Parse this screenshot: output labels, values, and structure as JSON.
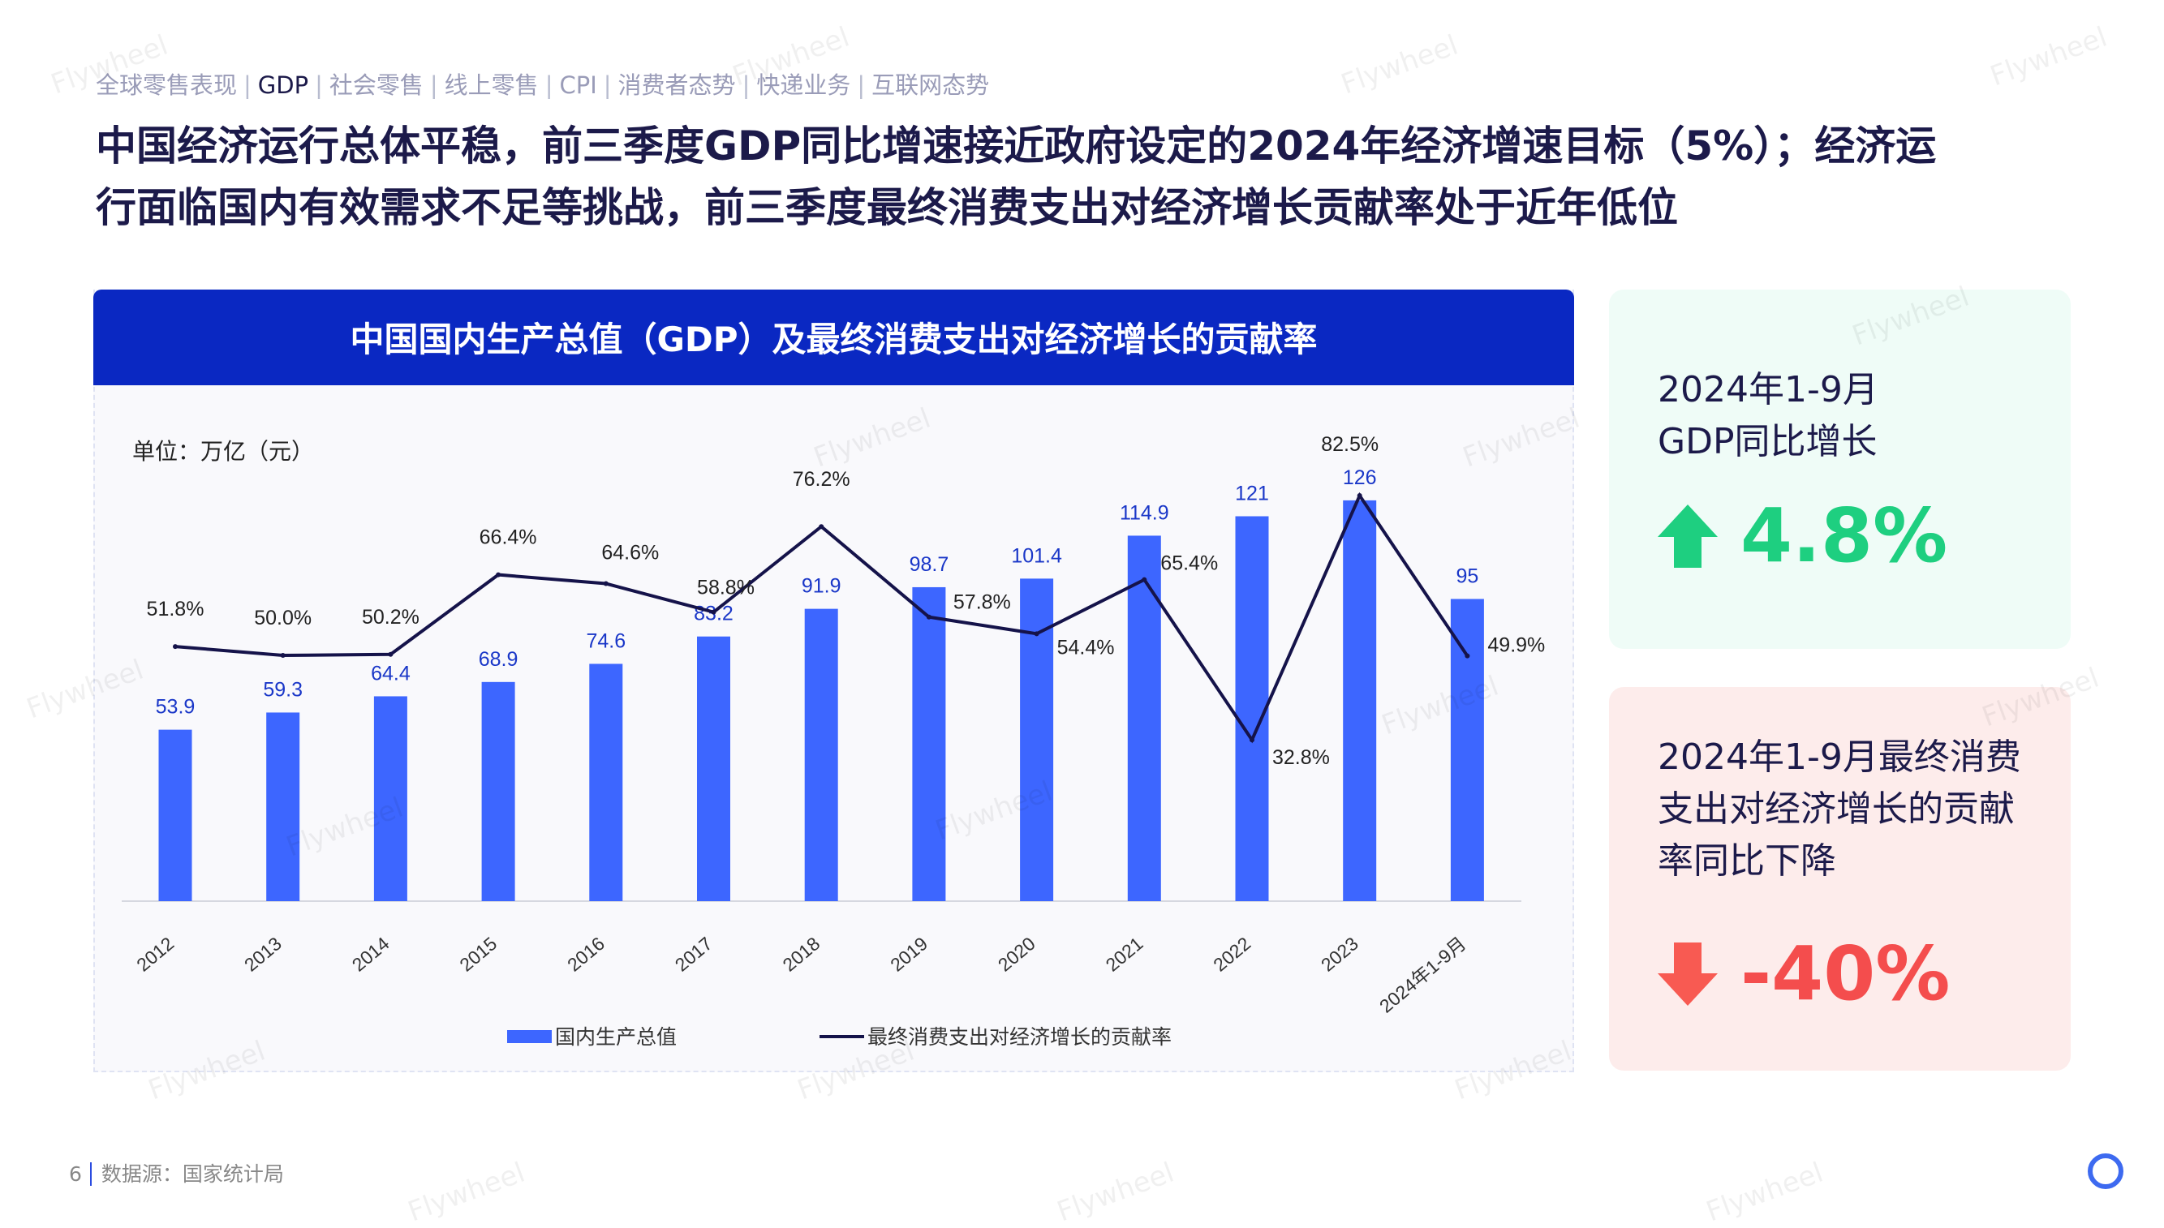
{
  "nav": {
    "items": [
      "全球零售表现",
      "GDP",
      "社会零售",
      "线上零售",
      "CPI",
      "消费者态势",
      "快递业务",
      "互联网态势"
    ],
    "active_index": 1
  },
  "title": {
    "line1": "中国经济运行总体平稳，前三季度GDP同比增速接近政府设定的2024年经济增速目标（5%）；经济运",
    "line2": "行面临国内有效需求不足等挑战，前三季度最终消费支出对经济增长贡献率处于近年低位"
  },
  "panel": {
    "title": "中国国内生产总值（GDP）及最终消费支出对经济增长的贡献率",
    "unit": "单位：万亿（元）"
  },
  "chart_data": {
    "type": "bar+line",
    "categories": [
      "2012",
      "2013",
      "2014",
      "2015",
      "2016",
      "2017",
      "2018",
      "2019",
      "2020",
      "2021",
      "2022",
      "2023",
      "2024年1-9月"
    ],
    "series": [
      {
        "name": "国内生产总值",
        "type": "bar",
        "color": "#3d66ff",
        "values": [
          53.9,
          59.3,
          64.4,
          68.9,
          74.6,
          83.2,
          91.9,
          98.7,
          101.4,
          114.9,
          121,
          126,
          95
        ],
        "labels": [
          "53.9",
          "59.3",
          "64.4",
          "68.9",
          "74.6",
          "83.2",
          "91.9",
          "98.7",
          "101.4",
          "114.9",
          "121",
          "126",
          "95"
        ]
      },
      {
        "name": "最终消费支出对经济增长的贡献率",
        "type": "line",
        "color": "#15134a",
        "values": [
          51.8,
          50.0,
          50.2,
          66.4,
          64.6,
          58.8,
          76.2,
          57.8,
          54.4,
          65.4,
          32.8,
          82.5,
          49.9
        ],
        "labels": [
          "51.8%",
          "50.0%",
          "50.2%",
          "66.4%",
          "64.6%",
          "58.8%",
          "76.2%",
          "57.8%",
          "54.4%",
          "65.4%",
          "32.8%",
          "82.5%",
          "49.9%"
        ]
      }
    ],
    "y_left_range": [
      0,
      140
    ],
    "y_right_range": [
      0,
      100
    ],
    "grid": false,
    "legend": "bottom"
  },
  "cards": {
    "gdp": {
      "line1": "2024年1-9月",
      "line2": "GDP同比增长",
      "value": "4.8%",
      "direction": "up",
      "color": "#1ecf80",
      "icon": "arrow-up-icon"
    },
    "consumption": {
      "line1": "2024年1-9月最终消费",
      "line2": "支出对经济增长的贡献",
      "line3": "率同比下降",
      "value": "-40%",
      "direction": "down",
      "color": "#f44d4d",
      "icon": "arrow-down-icon"
    }
  },
  "footer": {
    "page": "6",
    "source": "数据源：国家统计局"
  },
  "watermark": "Flywheel"
}
